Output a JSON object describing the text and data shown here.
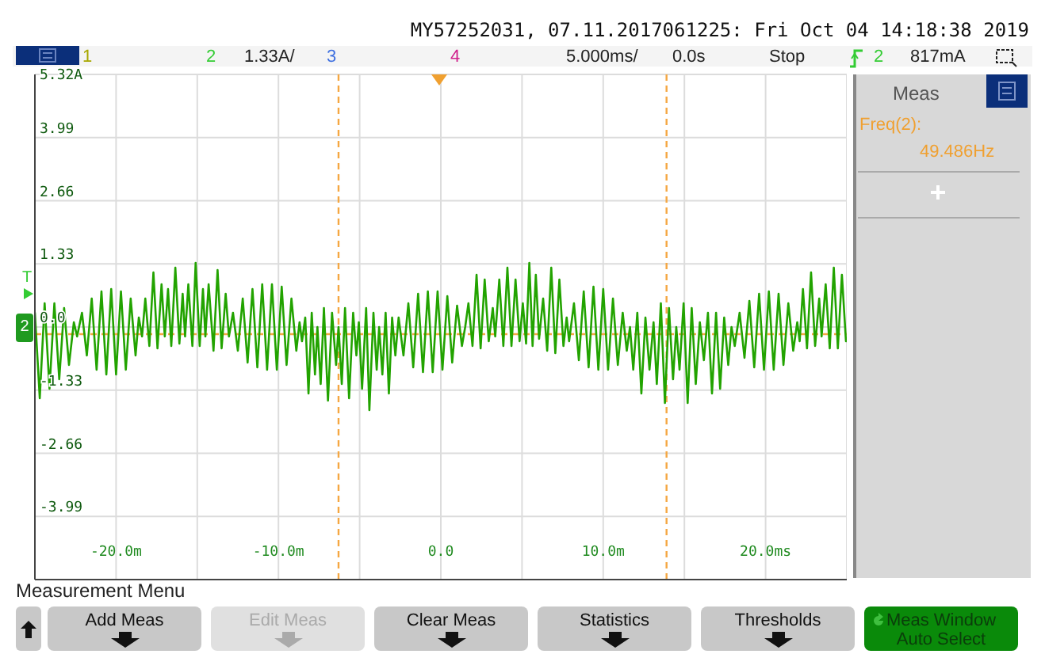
{
  "chart_data": {
    "type": "line",
    "title": "MY57252031, 07.11.2017061225: Fri Oct 04 14:18:38 2019",
    "series": [
      {
        "color": "#22a300",
        "x": [
          -25,
          -24.7,
          -24.4,
          -24.1,
          -23.8,
          -23.5,
          -23.2,
          -22.9,
          -22.6,
          -22.4,
          -22.1,
          -21.8,
          -21.5,
          -21.2,
          -20.9,
          -20.6,
          -20.3,
          -20.0,
          -19.7,
          -19.4,
          -19.1,
          -18.8,
          -18.6,
          -18.4,
          -18.2,
          -17.95,
          -17.7,
          -17.45,
          -17.2,
          -17.0,
          -16.8,
          -16.6,
          -16.35,
          -16.1,
          -15.9,
          -15.75,
          -15.55,
          -15.3,
          -15.1,
          -14.85,
          -14.65,
          -14.5,
          -14.3,
          -14.0,
          -13.75,
          -13.5,
          -13.25,
          -13.05,
          -12.8,
          -12.5,
          -12.2,
          -11.9,
          -11.6,
          -11.3,
          -11.0,
          -10.7,
          -10.4,
          -10.1,
          -9.8,
          -9.5,
          -9.2,
          -8.9,
          -8.7,
          -8.55,
          -8.35,
          -8.15,
          -7.95,
          -7.75,
          -7.6,
          -7.4,
          -7.2,
          -6.95,
          -6.7,
          -6.45,
          -6.3,
          -6.1,
          -5.9,
          -5.65,
          -5.4,
          -5.2,
          -5.05,
          -4.85,
          -4.6,
          -4.4,
          -4.15,
          -3.95,
          -3.8,
          -3.6,
          -3.4,
          -3.2,
          -3.0,
          -2.8,
          -2.6,
          -2.3,
          -2.0,
          -1.7,
          -1.4,
          -1.1,
          -0.8,
          -0.5,
          -0.2,
          0.1,
          0.4,
          0.7,
          1.0,
          1.3,
          1.5,
          1.7,
          1.95,
          2.2,
          2.45,
          2.7,
          2.95,
          3.2,
          3.35,
          3.6,
          3.85,
          4.1,
          4.35,
          4.6,
          4.85,
          5.05,
          5.25,
          5.45,
          5.65,
          5.85,
          6.05,
          6.3,
          6.55,
          6.8,
          7.05,
          7.3,
          7.55,
          7.75,
          7.9,
          8.2,
          8.5,
          8.8,
          9.1,
          9.4,
          9.7,
          10.0,
          10.3,
          10.6,
          10.9,
          11.2,
          11.45,
          11.65,
          11.85,
          12.1,
          12.35,
          12.6,
          12.85,
          13.1,
          13.3,
          13.55,
          13.8,
          14.05,
          14.3,
          14.5,
          14.7,
          14.95,
          15.2,
          15.45,
          15.7,
          15.95,
          16.2,
          16.45,
          16.7,
          16.95,
          17.2,
          17.45,
          17.7,
          17.9,
          18.1,
          18.4,
          18.7,
          19.0,
          19.3,
          19.6,
          19.9,
          20.2,
          20.5,
          20.8,
          21.1,
          21.4,
          21.7,
          21.95,
          22.1,
          22.3,
          22.55,
          22.8,
          23.05,
          23.3,
          23.45,
          23.7,
          23.95,
          24.2,
          24.45,
          24.7,
          24.95
        ],
        "values": [
          0.3,
          -1.5,
          0.5,
          -1.3,
          0.5,
          -1.1,
          0.4,
          -0.8,
          0.1,
          -0.2,
          0.3,
          -0.6,
          0.6,
          -0.9,
          0.75,
          -1.0,
          0.8,
          -1.0,
          0.75,
          -0.9,
          0.6,
          -0.6,
          0.2,
          -0.2,
          0.6,
          -0.4,
          1.15,
          -0.45,
          0.9,
          -0.2,
          0.8,
          -0.4,
          1.25,
          -0.35,
          0.7,
          -0.2,
          0.9,
          -0.4,
          1.35,
          -0.4,
          0.8,
          -0.2,
          0.9,
          -0.5,
          1.2,
          -0.45,
          0.7,
          -0.2,
          0.3,
          -0.5,
          0.6,
          -0.75,
          0.8,
          -0.85,
          0.9,
          -0.9,
          0.9,
          -0.9,
          0.85,
          -0.8,
          0.6,
          -0.5,
          0.1,
          -0.3,
          0.2,
          -1.4,
          0.3,
          -1.0,
          0.0,
          -1.2,
          0.4,
          -1.55,
          0.3,
          -0.8,
          0.0,
          -1.2,
          0.4,
          -1.5,
          0.3,
          -0.6,
          0.1,
          -1.3,
          0.4,
          -1.75,
          0.3,
          -0.9,
          0.0,
          -1.0,
          0.3,
          -1.4,
          0.2,
          -0.6,
          0.2,
          -0.6,
          0.5,
          -0.85,
          0.7,
          -0.95,
          0.75,
          -0.95,
          0.75,
          -0.9,
          0.65,
          -0.75,
          0.45,
          -0.4,
          0.0,
          0.5,
          -0.4,
          1.1,
          -0.45,
          1.0,
          -0.3,
          0.4,
          -0.2,
          1.0,
          -0.4,
          1.25,
          -0.4,
          1.0,
          -0.3,
          0.5,
          -0.35,
          1.35,
          -0.4,
          1.1,
          -0.25,
          0.6,
          -0.5,
          1.25,
          -0.55,
          1.0,
          -0.4,
          0.2,
          -0.3,
          0.5,
          -0.7,
          0.75,
          -0.85,
          0.85,
          -0.9,
          0.8,
          -0.9,
          0.6,
          -0.8,
          0.3,
          -0.5,
          0.0,
          -0.9,
          0.3,
          -1.4,
          0.2,
          -0.9,
          0.1,
          -1.2,
          0.5,
          -1.6,
          0.4,
          -1.1,
          0.0,
          -0.9,
          0.5,
          -1.6,
          0.4,
          -1.2,
          0.1,
          -0.7,
          0.3,
          -1.4,
          0.3,
          -1.3,
          0.2,
          -0.8,
          0.0,
          -0.4,
          0.3,
          -0.65,
          0.55,
          -0.85,
          0.7,
          -0.9,
          0.75,
          -0.9,
          0.7,
          -0.8,
          0.5,
          -0.5,
          0.1,
          -0.3,
          0.8,
          -0.45,
          1.15,
          -0.4,
          0.6,
          -0.2,
          0.9,
          -0.45,
          1.25,
          -0.45,
          1.1,
          -0.3
        ]
      }
    ],
    "xlim": [
      -25,
      25
    ],
    "xticks": [
      {
        "value": -25,
        "label": null
      },
      {
        "value": -20,
        "label": "-20.0m"
      },
      {
        "value": -15,
        "label": null
      },
      {
        "value": -10,
        "label": "-10.0m"
      },
      {
        "value": -5,
        "label": null
      },
      {
        "value": 0,
        "label": "0.0"
      },
      {
        "value": 5,
        "label": null
      },
      {
        "value": 10,
        "label": "10.0m"
      },
      {
        "value": 15,
        "label": null
      },
      {
        "value": 20,
        "label": "20.0ms"
      },
      {
        "value": 25,
        "label": null
      }
    ],
    "ylim": [
      -5.32,
      5.32
    ],
    "yticks": [
      {
        "value": -5.32,
        "label": null
      },
      {
        "value": -3.99,
        "label": "-3.99"
      },
      {
        "value": -2.66,
        "label": "-2.66"
      },
      {
        "value": -1.33,
        "label": "-1.33"
      },
      {
        "value": 0,
        "label": "0.0"
      },
      {
        "value": 1.33,
        "label": "1.33"
      },
      {
        "value": 2.66,
        "label": "2.66"
      },
      {
        "value": 3.99,
        "label": "3.99"
      },
      {
        "value": 5.32,
        "label": "5.32A"
      }
    ],
    "grid": true,
    "marker": "none",
    "line_style": "solid",
    "ref_lines": [
      {
        "axis": "x",
        "value": -6.3,
        "color": "#f5a742",
        "line_style": "dashed"
      },
      {
        "axis": "x",
        "value": 13.9,
        "color": "#f5a742",
        "line_style": "dashed"
      },
      {
        "axis": "y",
        "value": -0.15,
        "color": "#f5a742",
        "line_style": "dashed"
      }
    ],
    "annotations": [
      "1",
      "2",
      "1.33A/",
      "3",
      "4",
      "5.000ms/",
      "0.0s",
      "Stop",
      "2",
      "817mA",
      "Meas",
      "Freq(2):",
      "49.486Hz",
      "Measurement Menu",
      "Add Meas",
      "Edit Meas",
      "Clear Meas",
      "Statistics",
      "Thresholds",
      "Meas Window",
      "Auto Select",
      "T",
      "2"
    ]
  }
}
